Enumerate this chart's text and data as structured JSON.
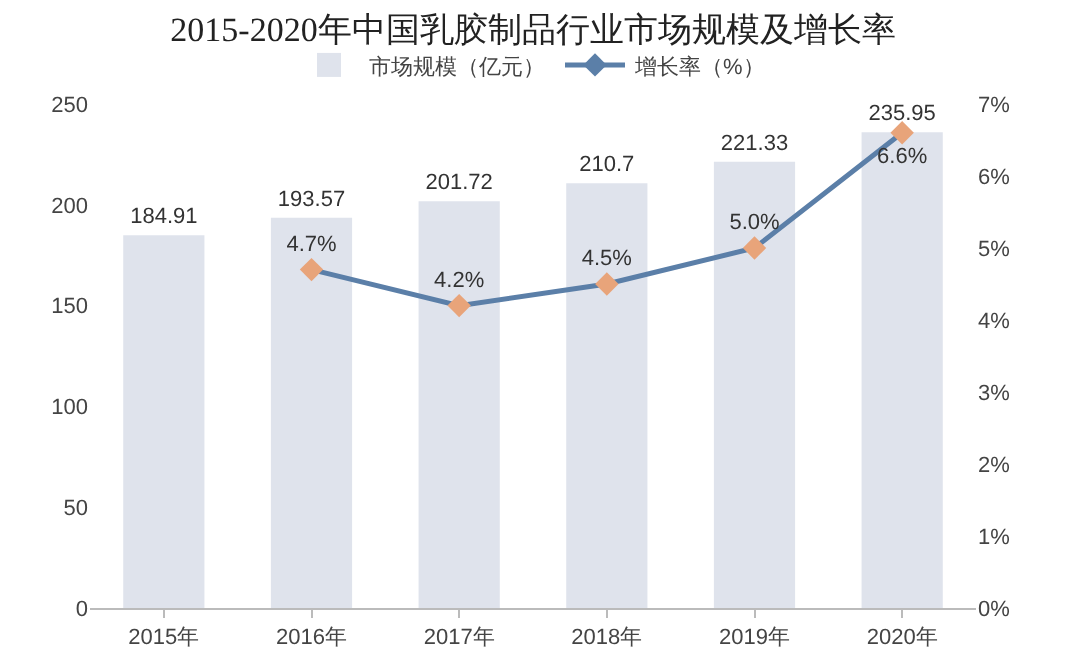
{
  "chart_data": {
    "type": "bar",
    "title": "2015-2020年中国乳胶制品行业市场规模及增长率",
    "categories": [
      "2015年",
      "2016年",
      "2017年",
      "2018年",
      "2019年",
      "2020年"
    ],
    "series": [
      {
        "name": "市场规模（亿元）",
        "color": "#dfe3ec",
        "values": [
          184.91,
          193.57,
          201.72,
          210.7,
          221.33,
          235.95
        ],
        "value_labels": [
          "184.91",
          "193.57",
          "201.72",
          "210.7",
          "221.33",
          "235.95"
        ]
      },
      {
        "name": "增长率（%）",
        "type": "line",
        "axis": "y2",
        "color": "#5b7fa8",
        "colors": [
          null,
          "#e8a47a",
          "#e8a47a",
          "#e8a47a",
          "#e8a47a",
          "#e8a47a"
        ],
        "values": [
          null,
          4.7,
          4.2,
          4.5,
          5.0,
          6.6
        ],
        "value_labels": [
          null,
          "4.7%",
          "4.2%",
          "4.5%",
          "5.0%",
          "6.6%"
        ]
      }
    ],
    "ylim": [
      0,
      250
    ],
    "yticks": [
      0,
      50,
      100,
      150,
      200,
      250
    ],
    "y2lim": [
      0,
      7
    ],
    "y2ticks": [
      {
        "value": 0,
        "label": "0%"
      },
      {
        "value": 1,
        "label": "1%"
      },
      {
        "value": 2,
        "label": "2%"
      },
      {
        "value": 3,
        "label": "3%"
      },
      {
        "value": 4,
        "label": "4%"
      },
      {
        "value": 5,
        "label": "5%"
      },
      {
        "value": 6,
        "label": "6%"
      },
      {
        "value": 7,
        "label": "7%"
      }
    ],
    "legend": "top",
    "marker": "diamond",
    "line_style": "solid",
    "grid": false
  }
}
